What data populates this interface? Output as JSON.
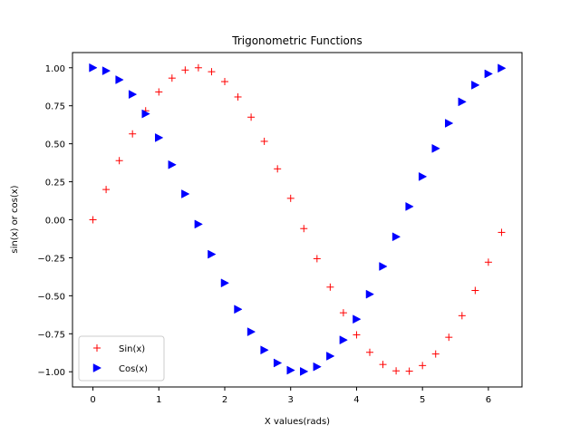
{
  "chart_data": {
    "type": "scatter",
    "title": "Trigonometric Functions",
    "xlabel": "X values(rads)",
    "ylabel": "sin(x) or cos(x)",
    "xlim": [
      -0.31,
      6.51
    ],
    "ylim": [
      -1.1,
      1.1
    ],
    "xticks": [
      0,
      1,
      2,
      3,
      4,
      5,
      6
    ],
    "xtick_labels": [
      "0",
      "1",
      "2",
      "3",
      "4",
      "5",
      "6"
    ],
    "yticks": [
      -1.0,
      -0.75,
      -0.5,
      -0.25,
      0.0,
      0.25,
      0.5,
      0.75,
      1.0
    ],
    "ytick_labels": [
      "−1.00",
      "−0.75",
      "−0.50",
      "−0.25",
      "0.00",
      "0.25",
      "0.50",
      "0.75",
      "1.00"
    ],
    "grid": false,
    "legend_position": "bottom-left",
    "x": [
      0.0,
      0.2,
      0.4,
      0.6,
      0.8,
      1.0,
      1.2,
      1.4,
      1.6,
      1.8,
      2.0,
      2.2,
      2.4,
      2.6,
      2.8,
      3.0,
      3.2,
      3.4,
      3.6,
      3.8,
      4.0,
      4.2,
      4.4,
      4.6,
      4.8,
      5.0,
      5.2,
      5.4,
      5.6,
      5.8,
      6.0,
      6.2
    ],
    "series": [
      {
        "name": "Sin(x)",
        "marker": "plus",
        "color": "#ff0000",
        "values": [
          0.0,
          0.199,
          0.389,
          0.565,
          0.717,
          0.841,
          0.932,
          0.985,
          1.0,
          0.974,
          0.909,
          0.808,
          0.675,
          0.516,
          0.335,
          0.141,
          -0.058,
          -0.256,
          -0.443,
          -0.612,
          -0.757,
          -0.872,
          -0.952,
          -0.994,
          -0.996,
          -0.959,
          -0.883,
          -0.773,
          -0.631,
          -0.465,
          -0.279,
          -0.083
        ]
      },
      {
        "name": "Cos(x)",
        "marker": "triangle-right",
        "color": "#0000ff",
        "values": [
          1.0,
          0.98,
          0.921,
          0.825,
          0.697,
          0.54,
          0.362,
          0.17,
          -0.029,
          -0.227,
          -0.416,
          -0.589,
          -0.737,
          -0.857,
          -0.942,
          -0.99,
          -0.998,
          -0.967,
          -0.897,
          -0.791,
          -0.654,
          -0.49,
          -0.307,
          -0.112,
          0.087,
          0.284,
          0.469,
          0.635,
          0.776,
          0.886,
          0.96,
          0.997
        ]
      }
    ]
  }
}
